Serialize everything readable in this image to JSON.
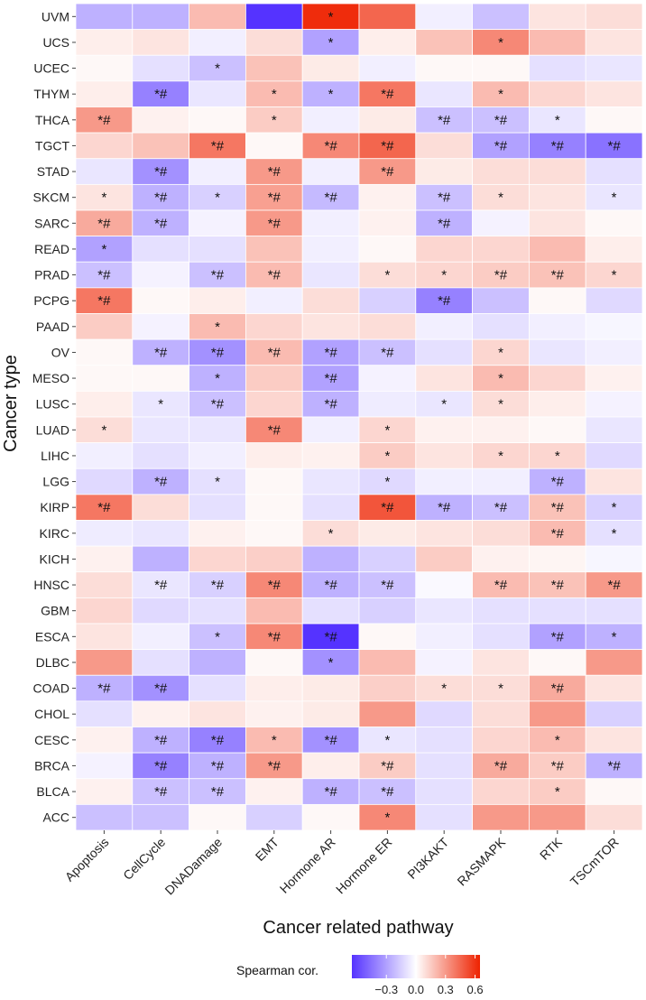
{
  "chart_data": {
    "type": "heatmap",
    "xlabel": "Cancer related pathway",
    "ylabel": "Cancer type",
    "x_categories": [
      "Apoptosis",
      "CellCycle",
      "DNADamage",
      "EMT",
      "Hormone AR",
      "Hormone ER",
      "PI3KAKT",
      "RASMAPK",
      "RTK",
      "TSCmTOR"
    ],
    "y_categories": [
      "UVM",
      "UCS",
      "UCEC",
      "THYM",
      "THCA",
      "TGCT",
      "STAD",
      "SKCM",
      "SARC",
      "READ",
      "PRAD",
      "PCPG",
      "PAAD",
      "OV",
      "MESO",
      "LUSC",
      "LUAD",
      "LIHC",
      "LGG",
      "KIRP",
      "KIRC",
      "KICH",
      "HNSC",
      "GBM",
      "ESCA",
      "DLBC",
      "COAD",
      "CHOL",
      "CESC",
      "BRCA",
      "BLCA",
      "ACC"
    ],
    "values": [
      [
        -0.25,
        -0.25,
        0.2,
        -0.65,
        0.62,
        0.45,
        -0.05,
        -0.2,
        0.08,
        0.1
      ],
      [
        0.05,
        0.08,
        -0.05,
        0.1,
        -0.3,
        0.05,
        0.18,
        0.35,
        0.2,
        0.08
      ],
      [
        0.02,
        -0.1,
        -0.2,
        0.18,
        0.06,
        -0.05,
        0.02,
        0.02,
        -0.1,
        -0.08
      ],
      [
        0.05,
        -0.4,
        -0.08,
        0.2,
        -0.25,
        0.4,
        -0.08,
        0.2,
        0.12,
        0.08
      ],
      [
        0.3,
        0.04,
        0.02,
        0.15,
        -0.05,
        0.06,
        -0.2,
        -0.2,
        -0.08,
        0.02
      ],
      [
        0.12,
        0.18,
        0.4,
        0.02,
        0.35,
        0.45,
        0.1,
        -0.3,
        -0.4,
        -0.45
      ],
      [
        -0.08,
        -0.35,
        -0.05,
        0.3,
        -0.05,
        0.3,
        0.06,
        0.1,
        0.1,
        -0.1
      ],
      [
        0.08,
        -0.25,
        -0.15,
        0.28,
        -0.22,
        0.04,
        -0.2,
        0.1,
        0.08,
        -0.08
      ],
      [
        0.25,
        -0.25,
        -0.04,
        0.3,
        -0.05,
        0.04,
        -0.25,
        -0.04,
        0.08,
        0.02
      ],
      [
        -0.3,
        -0.1,
        -0.1,
        0.18,
        -0.05,
        0.02,
        0.12,
        0.12,
        0.2,
        0.05
      ],
      [
        -0.2,
        -0.04,
        -0.2,
        0.2,
        -0.08,
        0.1,
        0.12,
        0.15,
        0.18,
        0.12
      ],
      [
        0.4,
        0.02,
        0.05,
        -0.05,
        0.1,
        -0.15,
        -0.4,
        -0.2,
        0.02,
        -0.12
      ],
      [
        0.15,
        -0.04,
        0.2,
        0.12,
        0.08,
        0.1,
        -0.05,
        -0.1,
        -0.05,
        -0.03
      ],
      [
        0.02,
        -0.25,
        -0.35,
        0.2,
        -0.3,
        -0.2,
        -0.1,
        0.12,
        -0.08,
        -0.05
      ],
      [
        0.02,
        0.02,
        -0.25,
        0.15,
        -0.3,
        -0.04,
        0.08,
        0.2,
        0.12,
        0.04
      ],
      [
        0.05,
        -0.08,
        -0.2,
        0.12,
        -0.25,
        -0.06,
        -0.08,
        0.1,
        0.05,
        -0.04
      ],
      [
        0.1,
        -0.08,
        -0.08,
        0.35,
        -0.05,
        0.12,
        0.04,
        0.04,
        0.02,
        -0.08
      ],
      [
        -0.05,
        -0.1,
        -0.05,
        0.05,
        0.04,
        0.15,
        0.08,
        0.12,
        0.12,
        -0.12
      ],
      [
        -0.12,
        -0.25,
        -0.1,
        0.02,
        -0.08,
        -0.12,
        -0.05,
        -0.05,
        -0.25,
        0.08
      ],
      [
        0.4,
        0.1,
        -0.1,
        0.02,
        -0.1,
        0.5,
        -0.25,
        -0.2,
        0.18,
        -0.15
      ],
      [
        -0.06,
        -0.08,
        0.04,
        0.02,
        0.1,
        0.06,
        0.08,
        0.1,
        0.2,
        -0.1
      ],
      [
        0.04,
        -0.25,
        0.12,
        0.14,
        -0.25,
        -0.15,
        0.15,
        0.04,
        0.03,
        -0.03
      ],
      [
        0.1,
        -0.08,
        -0.15,
        0.35,
        -0.25,
        -0.2,
        -0.02,
        0.2,
        0.18,
        0.3
      ],
      [
        0.12,
        -0.12,
        -0.1,
        0.2,
        -0.1,
        -0.15,
        -0.08,
        -0.1,
        -0.1,
        -0.1
      ],
      [
        0.08,
        -0.05,
        -0.2,
        0.35,
        -0.65,
        0.02,
        -0.05,
        -0.1,
        -0.3,
        -0.25
      ],
      [
        0.3,
        -0.1,
        -0.25,
        0.02,
        -0.35,
        0.2,
        -0.04,
        0.08,
        0.02,
        0.3
      ],
      [
        -0.25,
        -0.35,
        -0.1,
        0.05,
        0.06,
        0.14,
        0.1,
        0.1,
        0.25,
        0.08
      ],
      [
        -0.1,
        0.04,
        0.08,
        0.04,
        0.06,
        0.3,
        -0.12,
        0.1,
        0.3,
        -0.15
      ],
      [
        0.04,
        -0.25,
        -0.4,
        0.2,
        -0.35,
        -0.08,
        -0.1,
        0.12,
        0.2,
        0.08
      ],
      [
        -0.04,
        -0.4,
        -0.25,
        0.3,
        0.05,
        0.15,
        -0.1,
        0.25,
        0.15,
        -0.25
      ],
      [
        0.04,
        -0.2,
        -0.2,
        0.04,
        -0.25,
        -0.2,
        -0.1,
        0.12,
        0.15,
        0.02
      ],
      [
        -0.2,
        -0.2,
        0.02,
        -0.15,
        0.02,
        0.35,
        -0.1,
        0.3,
        0.3,
        0.1
      ]
    ],
    "annotations": [
      [
        "",
        "",
        "",
        "",
        "*",
        "",
        "",
        "",
        "",
        ""
      ],
      [
        "",
        "",
        "",
        "",
        "*",
        "",
        "",
        "*",
        "",
        ""
      ],
      [
        "",
        "",
        "*",
        "",
        "",
        "",
        "",
        "",
        "",
        ""
      ],
      [
        "",
        "*#",
        "",
        "*",
        "*",
        "*#",
        "",
        "*",
        "",
        ""
      ],
      [
        "*#",
        "",
        "",
        "*",
        "",
        "",
        "*#",
        "*#",
        "*",
        ""
      ],
      [
        "",
        "",
        "*#",
        "",
        "*#",
        "*#",
        "",
        "*#",
        "*#",
        "*#"
      ],
      [
        "",
        "*#",
        "",
        "*#",
        "",
        "*#",
        "",
        "",
        "",
        ""
      ],
      [
        "*",
        "*#",
        "*",
        "*#",
        "*#",
        "",
        "*#",
        "*",
        "",
        "*"
      ],
      [
        "*#",
        "*#",
        "",
        "*#",
        "",
        "",
        "*#",
        "",
        "",
        ""
      ],
      [
        "*",
        "",
        "",
        "",
        "",
        "",
        "",
        "",
        "",
        ""
      ],
      [
        "*#",
        "",
        "*#",
        "*#",
        "",
        "*",
        "*",
        "*#",
        "*#",
        "*"
      ],
      [
        "*#",
        "",
        "",
        "",
        "",
        "",
        "*#",
        "",
        "",
        ""
      ],
      [
        "",
        "",
        "*",
        "",
        "",
        "",
        "",
        "",
        "",
        ""
      ],
      [
        "",
        "*#",
        "*#",
        "*#",
        "*#",
        "*#",
        "",
        "*",
        "",
        ""
      ],
      [
        "",
        "",
        "*",
        "",
        "*#",
        "",
        "",
        "*",
        "",
        ""
      ],
      [
        "",
        "*",
        "*#",
        "",
        "*#",
        "",
        "*",
        "*",
        "",
        ""
      ],
      [
        "*",
        "",
        "",
        "*#",
        "",
        "*",
        "",
        "",
        "",
        ""
      ],
      [
        "",
        "",
        "",
        "",
        "",
        "*",
        "",
        "*",
        "*",
        ""
      ],
      [
        "",
        "*#",
        "*",
        "",
        "",
        "*",
        "",
        "",
        "*#",
        ""
      ],
      [
        "*#",
        "",
        "",
        "",
        "",
        "*#",
        "*#",
        "*#",
        "*#",
        "*"
      ],
      [
        "",
        "",
        "",
        "",
        "*",
        "",
        "",
        "",
        "*#",
        "*"
      ],
      [
        "",
        "",
        "",
        "",
        "",
        "",
        "",
        "",
        "",
        ""
      ],
      [
        "",
        "*#",
        "*#",
        "*#",
        "*#",
        "*#",
        "",
        "*#",
        "*#",
        "*#"
      ],
      [
        "",
        "",
        "",
        "",
        "",
        "",
        "",
        "",
        "",
        ""
      ],
      [
        "",
        "",
        "*",
        "*#",
        "*#",
        "",
        "",
        "",
        "*#",
        "*"
      ],
      [
        "",
        "",
        "",
        "",
        "*",
        "",
        "",
        "",
        "",
        ""
      ],
      [
        "*#",
        "*#",
        "",
        "",
        "",
        "",
        "*",
        "*",
        "*#",
        ""
      ],
      [
        "",
        "",
        "",
        "",
        "",
        "",
        "",
        "",
        "",
        ""
      ],
      [
        "",
        "*#",
        "*#",
        "*",
        "*#",
        "*",
        "",
        "",
        "*",
        ""
      ],
      [
        "",
        "*#",
        "*#",
        "*#",
        "",
        "*#",
        "",
        "*#",
        "*#",
        "*#"
      ],
      [
        "",
        "*#",
        "*#",
        "",
        "*#",
        "*#",
        "",
        "",
        "*",
        ""
      ],
      [
        "",
        "",
        "",
        "",
        "",
        "*",
        "",
        "",
        "",
        ""
      ]
    ],
    "legend": {
      "title": "Spearman cor.",
      "ticks": [
        -0.3,
        0.0,
        0.3,
        0.6
      ],
      "tick_labels": [
        "−0.3",
        "0.0",
        "0.3",
        "0.6"
      ],
      "range": [
        -0.65,
        0.65
      ],
      "low_color": "#5533ff",
      "mid_color": "#ffffff",
      "high_color": "#ee2200"
    }
  }
}
